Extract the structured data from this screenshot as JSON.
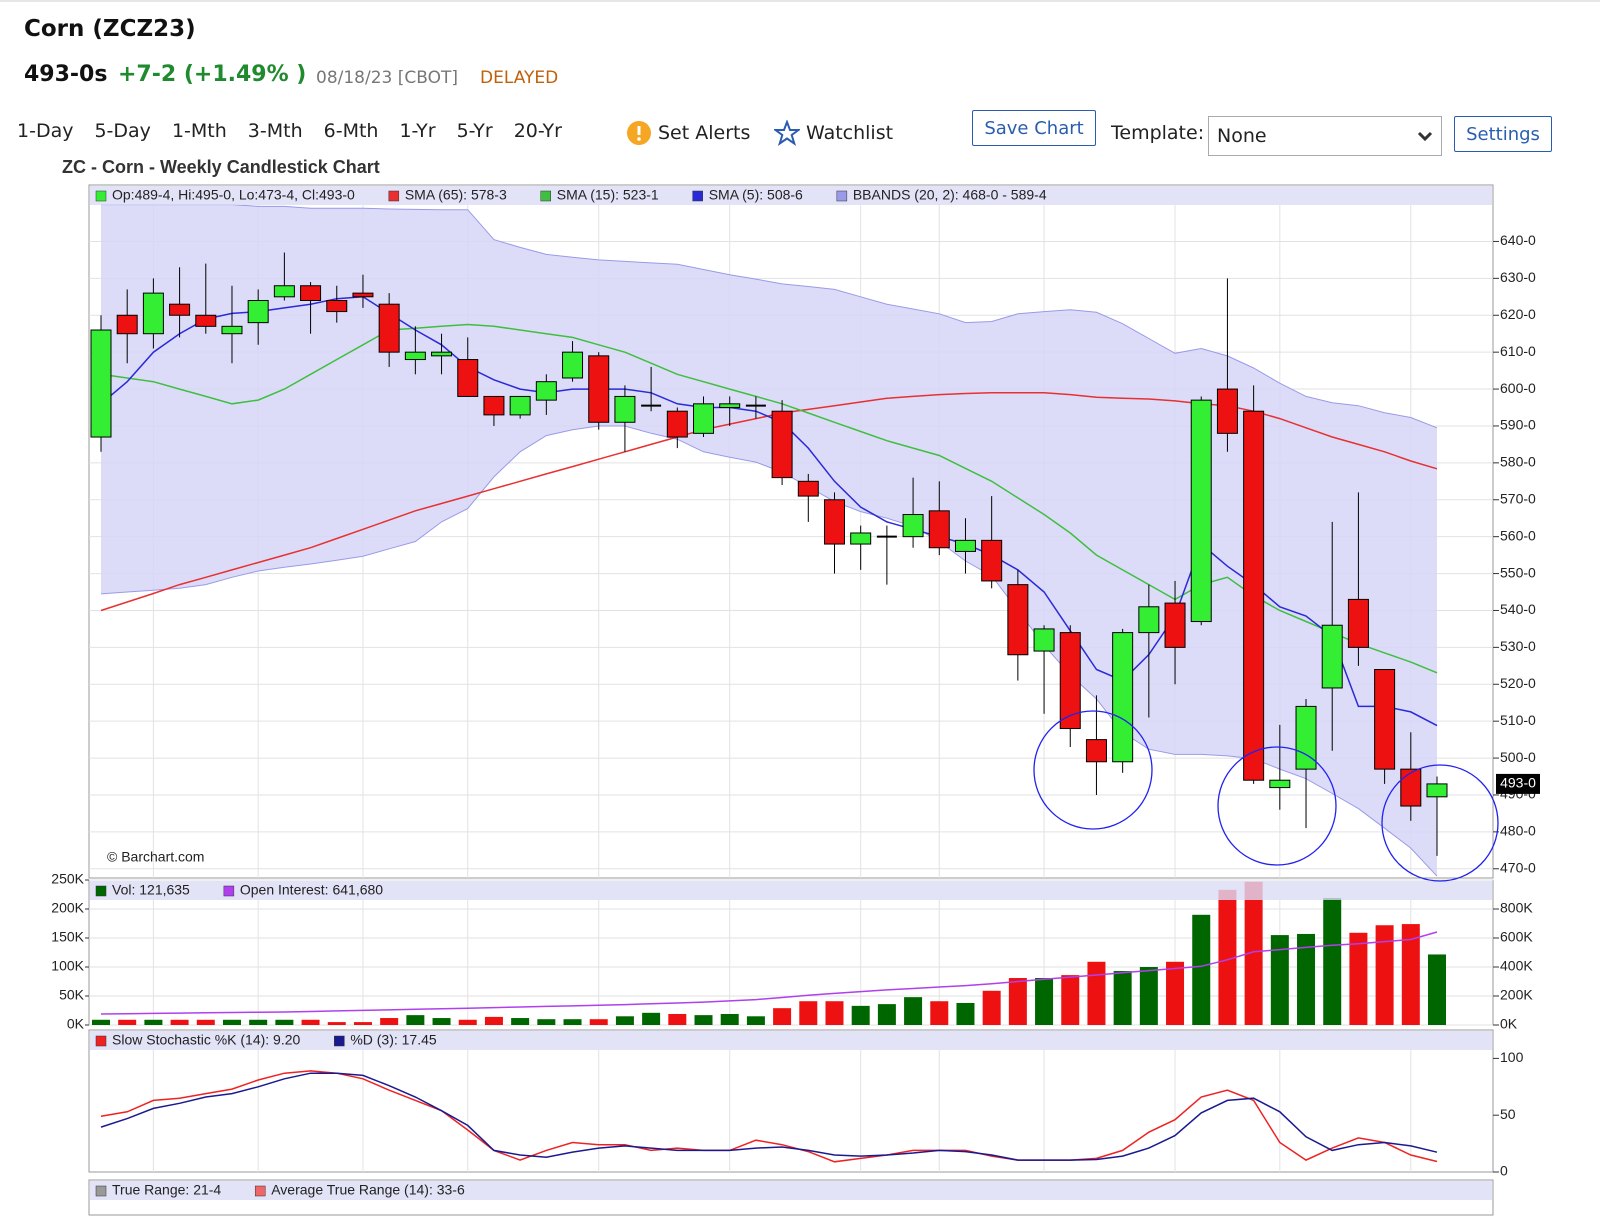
{
  "header": {
    "title": "Corn (ZCZ23)",
    "last": "493-0s",
    "change": "+7-2 (+1.49% )",
    "date": "08/18/23 [CBOT]",
    "status": "DELAYED"
  },
  "toolbar": {
    "periods": [
      "1-Day",
      "5-Day",
      "1-Mth",
      "3-Mth",
      "6-Mth",
      "1-Yr",
      "5-Yr",
      "20-Yr"
    ],
    "alerts": "Set Alerts",
    "watchlist": "Watchlist",
    "save": "Save Chart",
    "template_label": "Template:",
    "template_value": "None",
    "settings": "Settings"
  },
  "chart_data": [
    {
      "type": "candlestick",
      "title": "ZC - Corn - Weekly Candlestick Chart",
      "legend": "Op:489-4, Hi:495-0, Lo:473-4, Cl:493-0",
      "credit": "© Barchart.com",
      "up_color": "#33ee33",
      "down_color": "#ee1111",
      "open": [
        587,
        620,
        615,
        623,
        620,
        615,
        618,
        625,
        628,
        624,
        626,
        623,
        608,
        609,
        608,
        598,
        593,
        597,
        603,
        609,
        591,
        595.5,
        594,
        588,
        595,
        595.5,
        594,
        575,
        570,
        558,
        560,
        560,
        567,
        556,
        559,
        547,
        529,
        534,
        505,
        499,
        534,
        542,
        537,
        600,
        594,
        492,
        497,
        519,
        543,
        524,
        497,
        489.5
      ],
      "high": [
        620,
        627,
        630,
        633,
        634,
        628,
        627,
        637,
        629,
        628,
        631,
        626,
        617,
        615,
        614,
        598,
        598,
        604,
        613,
        610,
        601,
        606,
        595,
        598,
        598,
        598,
        597,
        577,
        572,
        563,
        563,
        576,
        575,
        565,
        571,
        551,
        536,
        536,
        517,
        535,
        547,
        548,
        598,
        630,
        601,
        509,
        516,
        564,
        572,
        524,
        507,
        495
      ],
      "low": [
        583,
        607,
        611,
        614,
        615,
        607,
        612,
        624,
        615,
        618,
        622,
        606,
        604,
        604,
        598,
        590,
        592,
        593,
        602,
        589,
        583,
        594,
        584,
        587,
        590,
        592,
        574,
        564,
        550,
        551,
        547,
        557,
        555,
        550,
        546,
        521,
        512,
        503,
        490,
        496,
        511,
        520,
        536,
        583,
        493,
        486,
        481,
        502,
        525,
        493,
        483,
        473.5
      ],
      "close": [
        616,
        615,
        626,
        620,
        617,
        617,
        624,
        628,
        624,
        621,
        625,
        610,
        610,
        610,
        598,
        593,
        598,
        602,
        610,
        591,
        598,
        595.5,
        587,
        596,
        596,
        595.5,
        576,
        571,
        558,
        561,
        560,
        566,
        557,
        559,
        548,
        528,
        535,
        508,
        499,
        534,
        541,
        530,
        597,
        588,
        494,
        494,
        514,
        536,
        530,
        497,
        487,
        493
      ],
      "series": [
        {
          "name": "SMA (65): 578-3",
          "color": "#e83030",
          "values": [
            540,
            542.3,
            544.6,
            547,
            549,
            551,
            553,
            555,
            557,
            559.5,
            562,
            564.5,
            567,
            569,
            571,
            573,
            575,
            577,
            579,
            581,
            583,
            585,
            587,
            589,
            590.5,
            592,
            593.5,
            594.5,
            595.5,
            596.5,
            597.5,
            598,
            598.5,
            598.8,
            599,
            599,
            599,
            598.5,
            597.8,
            597.5,
            597.3,
            596.8,
            596,
            595.5,
            594,
            592,
            589.5,
            587,
            585,
            583,
            580.5,
            578.4
          ]
        },
        {
          "name": "SMA (15): 523-1",
          "color": "#3fbf3f",
          "values": [
            604,
            603,
            602,
            600,
            598,
            596,
            597,
            600,
            604,
            608,
            612,
            616,
            616.5,
            617,
            617.5,
            617,
            616,
            615,
            614,
            612,
            610,
            607,
            604,
            602,
            600,
            598,
            596,
            593.5,
            591,
            588.5,
            586,
            584,
            582,
            578.5,
            575,
            570.5,
            566,
            561,
            555,
            551,
            547,
            543,
            547,
            549,
            544,
            540,
            537,
            534,
            531,
            528.5,
            526,
            523.1
          ]
        },
        {
          "name": "SMA (5): 508-6",
          "color": "#2a2ad8",
          "values": [
            596,
            602,
            610,
            615,
            619,
            620.5,
            621,
            622,
            623,
            624.5,
            625,
            620.5,
            616,
            612,
            606,
            602.5,
            600,
            599,
            600,
            600,
            600,
            599,
            596,
            595,
            595,
            594,
            591,
            584,
            575,
            568,
            564,
            562,
            560,
            558,
            555,
            551,
            545,
            534.5,
            524,
            521,
            528,
            538.5,
            558,
            552,
            547,
            541,
            538.5,
            533,
            514,
            514,
            512.5,
            508.8
          ]
        }
      ],
      "bands": {
        "name": "BBANDS (20, 2): 468-0 - 589-4",
        "color": "#9a9ae8",
        "fill": "#d6d6f8",
        "upper": [
          650,
          650,
          650,
          650,
          650,
          650,
          649.5,
          649.5,
          649,
          649,
          649,
          648.8,
          648.7,
          648.6,
          648.6,
          640.5,
          638.4,
          636.5,
          635.7,
          635,
          634.6,
          634.2,
          633.8,
          632.4,
          631,
          629.8,
          628.5,
          627.8,
          627,
          625,
          623,
          621.7,
          620.4,
          618,
          618.3,
          620.4,
          621,
          621.5,
          620.8,
          617.7,
          613.7,
          609.7,
          611,
          609,
          605.7,
          601.6,
          598,
          596.3,
          595.5,
          593.6,
          592.3,
          589.5
        ],
        "lower": [
          544.5,
          545,
          545.5,
          546,
          547,
          549,
          550.7,
          551.7,
          552.6,
          553.6,
          554.7,
          556.7,
          558.7,
          564,
          567.6,
          576.2,
          583,
          587.4,
          589,
          590,
          590,
          588,
          586.4,
          583,
          581.5,
          580.2,
          577.5,
          573.5,
          569.5,
          566.8,
          565,
          562.8,
          558.7,
          553.4,
          549.4,
          540,
          530.6,
          522.5,
          516,
          507,
          502.4,
          501,
          501,
          500.6,
          499.8,
          497,
          494.4,
          490.4,
          486.3,
          481,
          475.6,
          468
        ]
      },
      "price_tag": {
        "value": 493,
        "label": "493-0"
      },
      "ylim": [
        467.5,
        655.3
      ],
      "yticks": [
        {
          "value": 470,
          "label": "470-0"
        },
        {
          "value": 480,
          "label": "480-0"
        },
        {
          "value": 490,
          "label": "490-0"
        },
        {
          "value": 500,
          "label": "500-0"
        },
        {
          "value": 510,
          "label": "510-0"
        },
        {
          "value": 520,
          "label": "520-0"
        },
        {
          "value": 530,
          "label": "530-0"
        },
        {
          "value": 540,
          "label": "540-0"
        },
        {
          "value": 550,
          "label": "550-0"
        },
        {
          "value": 560,
          "label": "560-0"
        },
        {
          "value": 570,
          "label": "570-0"
        },
        {
          "value": 580,
          "label": "580-0"
        },
        {
          "value": 590,
          "label": "590-0"
        },
        {
          "value": 600,
          "label": "600-0"
        },
        {
          "value": 610,
          "label": "610-0"
        },
        {
          "value": 620,
          "label": "620-0"
        },
        {
          "value": 630,
          "label": "630-0"
        },
        {
          "value": 640,
          "label": "640-0"
        }
      ],
      "grid": true
    },
    {
      "type": "bar",
      "series": [
        {
          "name": "Vol: 121,635",
          "color": "#006600",
          "down_color": "#ee1111",
          "values": [
            9,
            9,
            9,
            9,
            9,
            9,
            9,
            9,
            9,
            5,
            5,
            12,
            17,
            12,
            9,
            14,
            12,
            10,
            10,
            10,
            15,
            21,
            19,
            17,
            19,
            15,
            29,
            41,
            41,
            33,
            36,
            48,
            41,
            38,
            59,
            81,
            81,
            86,
            109,
            93,
            100,
            109,
            190,
            233,
            247,
            155,
            157,
            219,
            159,
            172,
            174,
            121.635
          ]
        },
        {
          "name": "Open Interest: 641,680",
          "color": "#b040ee",
          "axis": "y2",
          "values": [
            76,
            78,
            80,
            82,
            84,
            86,
            88,
            90,
            93,
            97,
            101,
            104,
            108,
            112,
            116,
            120,
            124,
            128,
            132,
            136,
            141,
            146,
            152,
            158,
            166,
            175,
            190,
            205,
            218,
            230,
            242,
            252,
            262,
            272,
            285,
            300,
            315,
            330,
            345,
            360,
            375,
            390,
            405,
            450,
            505,
            520,
            535,
            550,
            560,
            575,
            590,
            641.68
          ]
        }
      ],
      "ylim": [
        0,
        250
      ],
      "yticks": [
        {
          "value": 0,
          "label": "0K"
        },
        {
          "value": 50,
          "label": "50K"
        },
        {
          "value": 100,
          "label": "100K"
        },
        {
          "value": 150,
          "label": "150K"
        },
        {
          "value": 200,
          "label": "200K"
        },
        {
          "value": 250,
          "label": "250K"
        }
      ],
      "y2lim": [
        0,
        1000
      ],
      "y2ticks": [
        {
          "value": 0,
          "label": "0K"
        },
        {
          "value": 200,
          "label": "200K"
        },
        {
          "value": 400,
          "label": "400K"
        },
        {
          "value": 600,
          "label": "600K"
        },
        {
          "value": 800,
          "label": "800K"
        }
      ],
      "grid": true
    },
    {
      "type": "line",
      "series": [
        {
          "name": "Slow Stochastic %K (14): 9.20",
          "color": "#ee2222",
          "values": [
            49,
            53,
            63,
            65,
            69,
            73,
            81,
            87,
            89,
            87,
            82,
            72,
            63,
            54,
            37,
            19,
            10.5,
            19,
            26,
            24,
            24,
            19,
            21,
            19,
            19,
            28,
            24,
            18,
            9,
            12,
            15,
            19,
            19,
            19,
            14,
            10.5,
            10.5,
            10.5,
            12,
            19,
            35,
            46,
            66,
            72,
            63,
            26,
            10.5,
            21,
            30,
            26,
            15,
            9.2
          ]
        },
        {
          "name": "%D (3): 17.45",
          "color": "#1a1a90",
          "values": [
            39.5,
            47,
            56,
            60.5,
            66,
            69,
            75,
            82,
            87,
            87,
            85,
            76,
            66,
            54,
            41,
            19,
            15,
            13,
            17.5,
            21,
            23,
            21,
            19,
            19,
            19,
            21,
            22,
            19,
            15,
            14,
            15,
            16.7,
            19,
            18,
            15,
            10.5,
            10.5,
            10.5,
            11,
            14,
            21,
            32,
            52,
            63,
            65,
            53,
            31,
            19,
            24,
            26,
            23,
            17.45
          ]
        }
      ],
      "ylim": [
        0,
        125
      ],
      "yticks": [
        0,
        50,
        100
      ],
      "grid": false
    },
    {
      "type": "line",
      "series": [
        {
          "name": "True Range: 21-4",
          "color": "#999999"
        },
        {
          "name": "Average True Range (14): 33-6",
          "color": "#ee6666"
        }
      ]
    }
  ]
}
